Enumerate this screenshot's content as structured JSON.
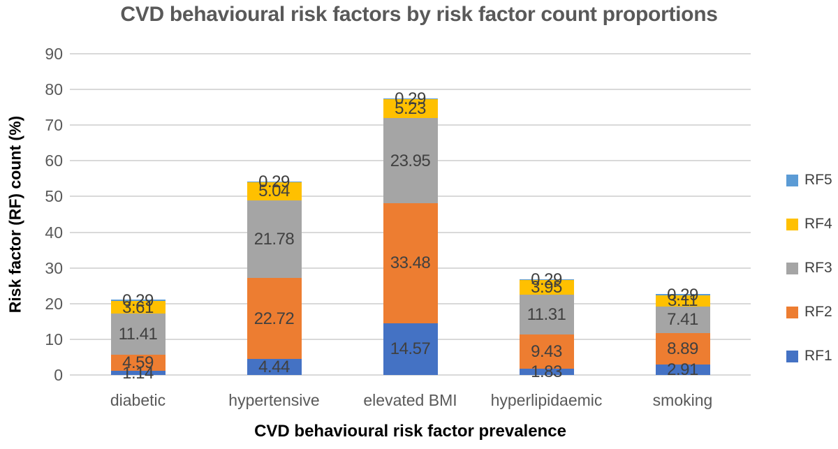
{
  "title": "CVD behavioural risk factors by risk factor count proportions",
  "chart_data": {
    "type": "bar",
    "stacked": true,
    "title": "CVD behavioural risk factors by risk factor count proportions",
    "xlabel": "CVD behavioural risk factor prevalence",
    "ylabel": "Risk factor (RF) count (%)",
    "ylim": [
      0,
      90
    ],
    "ytick_step": 10,
    "grid": true,
    "legend_position": "right",
    "legend_order_top_to_bottom": [
      "RF5",
      "RF4",
      "RF3",
      "RF2",
      "RF1"
    ],
    "categories": [
      "diabetic",
      "hypertensive",
      "elevated BMI",
      "hyperlipidaemic",
      "smoking"
    ],
    "series": [
      {
        "name": "RF1",
        "color": "#4472C4",
        "values": [
          1.14,
          4.44,
          14.57,
          1.83,
          2.91
        ]
      },
      {
        "name": "RF2",
        "color": "#ED7D31",
        "values": [
          4.59,
          22.72,
          33.48,
          9.43,
          8.89
        ]
      },
      {
        "name": "RF3",
        "color": "#A5A5A5",
        "values": [
          11.41,
          21.78,
          23.95,
          11.31,
          7.41
        ]
      },
      {
        "name": "RF4",
        "color": "#FFC000",
        "values": [
          3.61,
          5.04,
          5.23,
          3.95,
          3.11
        ]
      },
      {
        "name": "RF5",
        "color": "#5B9BD5",
        "values": [
          0.29,
          0.29,
          0.29,
          0.29,
          0.29
        ]
      }
    ],
    "totals": [
      21.04,
      54.27,
      77.52,
      26.81,
      22.61
    ]
  },
  "colors": {
    "gridline": "#D9D9D9",
    "title_text": "#595959",
    "tick_text": "#595959",
    "data_label_text": "#404040",
    "axis_title_text": "#000000",
    "legend_text": "#404040",
    "background": "#FFFFFF"
  }
}
